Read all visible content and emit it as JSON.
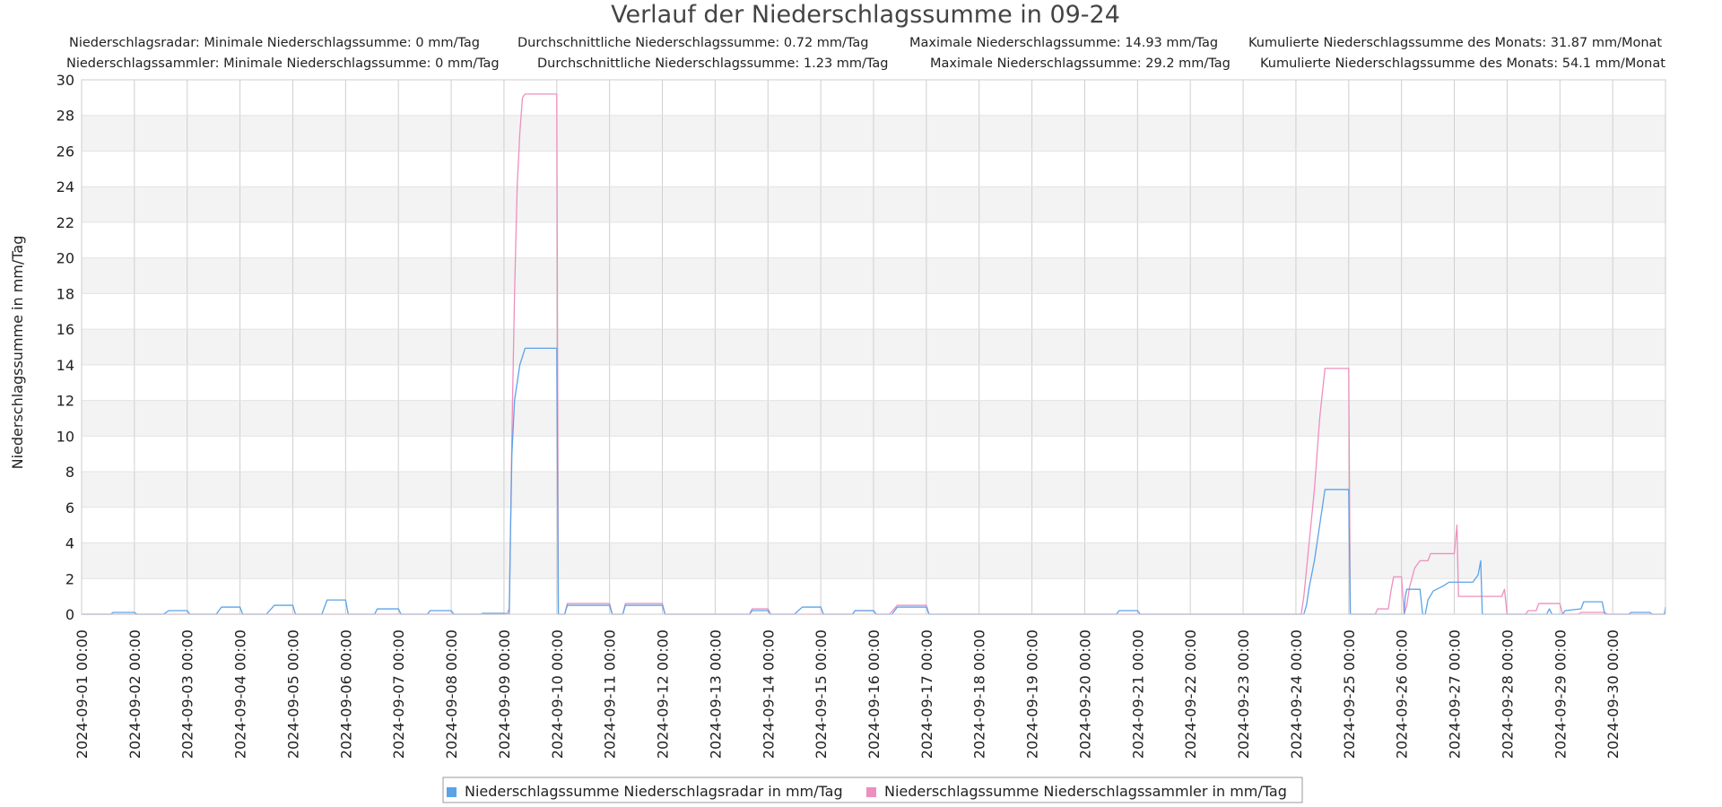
{
  "chart_data": {
    "type": "line",
    "title": "Verlauf der Niederschlagssumme in 09-24",
    "stats": [
      {
        "series": "Niederschlagsradar",
        "min": "Niederschlagsradar: Minimale Niederschlagssumme: 0 mm/Tag",
        "avg": "Durchschnittliche Niederschlagssumme: 0.72 mm/Tag",
        "max": "Maximale Niederschlagssumme: 14.93 mm/Tag",
        "cum": "Kumulierte Niederschlagssumme des Monats: 31.87 mm/Monat"
      },
      {
        "series": "Niederschlagssammler",
        "min": "Niederschlagssammler: Minimale Niederschlagssumme: 0 mm/Tag",
        "avg": "Durchschnittliche Niederschlagssumme: 1.23 mm/Tag",
        "max": "Maximale Niederschlagssumme: 29.2 mm/Tag",
        "cum": "Kumulierte Niederschlagssumme des Monats: 54.1 mm/Monat"
      }
    ],
    "ylabel": "Niederschlagssumme in mm/Tag",
    "ylim": [
      0,
      30
    ],
    "yticks": [
      0,
      2,
      4,
      6,
      8,
      10,
      12,
      14,
      16,
      18,
      20,
      22,
      24,
      26,
      28,
      30
    ],
    "xlim_days": [
      0,
      30
    ],
    "xticks": [
      "2024-09-01 00:00",
      "2024-09-02 00:00",
      "2024-09-03 00:00",
      "2024-09-04 00:00",
      "2024-09-05 00:00",
      "2024-09-06 00:00",
      "2024-09-07 00:00",
      "2024-09-08 00:00",
      "2024-09-09 00:00",
      "2024-09-10 00:00",
      "2024-09-11 00:00",
      "2024-09-12 00:00",
      "2024-09-13 00:00",
      "2024-09-14 00:00",
      "2024-09-15 00:00",
      "2024-09-16 00:00",
      "2024-09-17 00:00",
      "2024-09-18 00:00",
      "2024-09-19 00:00",
      "2024-09-20 00:00",
      "2024-09-21 00:00",
      "2024-09-22 00:00",
      "2024-09-23 00:00",
      "2024-09-24 00:00",
      "2024-09-25 00:00",
      "2024-09-26 00:00",
      "2024-09-27 00:00",
      "2024-09-28 00:00",
      "2024-09-29 00:00",
      "2024-09-30 00:00"
    ],
    "grid": true,
    "legend_position": "bottom",
    "series": [
      {
        "name": "Niederschlagssumme Niederschlagsradar in mm/Tag",
        "color": "#5ba3e8",
        "points": [
          [
            0,
            0
          ],
          [
            0.55,
            0
          ],
          [
            0.6,
            0.1
          ],
          [
            1.0,
            0.1
          ],
          [
            1.05,
            0
          ],
          [
            1.55,
            0
          ],
          [
            1.65,
            0.2
          ],
          [
            2.0,
            0.2
          ],
          [
            2.05,
            0
          ],
          [
            2.55,
            0
          ],
          [
            2.65,
            0.4
          ],
          [
            3.0,
            0.4
          ],
          [
            3.05,
            0
          ],
          [
            3.5,
            0
          ],
          [
            3.65,
            0.5
          ],
          [
            4.0,
            0.5
          ],
          [
            4.05,
            0
          ],
          [
            4.55,
            0
          ],
          [
            4.65,
            0.8
          ],
          [
            5.0,
            0.8
          ],
          [
            5.05,
            0
          ],
          [
            5.55,
            0
          ],
          [
            5.6,
            0.3
          ],
          [
            6.0,
            0.3
          ],
          [
            6.05,
            0
          ],
          [
            6.55,
            0
          ],
          [
            6.6,
            0.2
          ],
          [
            7.0,
            0.2
          ],
          [
            7.05,
            0
          ],
          [
            7.55,
            0
          ],
          [
            7.6,
            0.05
          ],
          [
            8.0,
            0.05
          ],
          [
            8.1,
            0
          ],
          [
            8.12,
            4
          ],
          [
            8.15,
            9
          ],
          [
            8.2,
            12
          ],
          [
            8.3,
            14
          ],
          [
            8.4,
            14.93
          ],
          [
            9.0,
            14.93
          ],
          [
            9.03,
            0
          ],
          [
            9.15,
            0
          ],
          [
            9.2,
            0.5
          ],
          [
            10.0,
            0.5
          ],
          [
            10.05,
            0
          ],
          [
            10.25,
            0
          ],
          [
            10.3,
            0.5
          ],
          [
            11.0,
            0.5
          ],
          [
            11.05,
            0
          ],
          [
            12.65,
            0
          ],
          [
            12.7,
            0.2
          ],
          [
            13.0,
            0.2
          ],
          [
            13.05,
            0
          ],
          [
            13.5,
            0
          ],
          [
            13.65,
            0.4
          ],
          [
            14.0,
            0.4
          ],
          [
            14.05,
            0
          ],
          [
            14.6,
            0
          ],
          [
            14.65,
            0.2
          ],
          [
            15.0,
            0.2
          ],
          [
            15.05,
            0
          ],
          [
            15.35,
            0
          ],
          [
            15.45,
            0.4
          ],
          [
            16.0,
            0.4
          ],
          [
            16.05,
            0
          ],
          [
            19.6,
            0
          ],
          [
            19.65,
            0.2
          ],
          [
            20.0,
            0.2
          ],
          [
            20.05,
            0
          ],
          [
            23.15,
            0
          ],
          [
            23.2,
            0.5
          ],
          [
            23.25,
            1.5
          ],
          [
            23.35,
            3
          ],
          [
            23.45,
            5
          ],
          [
            23.55,
            7
          ],
          [
            23.8,
            7
          ],
          [
            24.0,
            7
          ],
          [
            24.03,
            0
          ],
          [
            25.05,
            0
          ],
          [
            25.07,
            1
          ],
          [
            25.1,
            1.4
          ],
          [
            25.35,
            1.4
          ],
          [
            25.4,
            0
          ],
          [
            25.45,
            0
          ],
          [
            25.5,
            0.8
          ],
          [
            25.6,
            1.3
          ],
          [
            25.8,
            1.6
          ],
          [
            25.9,
            1.8
          ],
          [
            26.35,
            1.8
          ],
          [
            26.45,
            2.2
          ],
          [
            26.5,
            3.0
          ],
          [
            26.53,
            0
          ],
          [
            27.75,
            0
          ],
          [
            27.8,
            0.3
          ],
          [
            27.85,
            0
          ],
          [
            28.05,
            0
          ],
          [
            28.1,
            0.2
          ],
          [
            28.4,
            0.3
          ],
          [
            28.45,
            0.7
          ],
          [
            28.8,
            0.7
          ],
          [
            28.85,
            0
          ],
          [
            29.3,
            0
          ],
          [
            29.35,
            0.1
          ],
          [
            29.7,
            0.1
          ],
          [
            29.75,
            0
          ],
          [
            29.98,
            0
          ],
          [
            30,
            0.4
          ]
        ]
      },
      {
        "name": "Niederschlagssumme Niederschlagssammler in mm/Tag",
        "color": "#ee8fbe",
        "points": [
          [
            0,
            0
          ],
          [
            8.05,
            0
          ],
          [
            8.1,
            0.3
          ],
          [
            8.12,
            4
          ],
          [
            8.15,
            10
          ],
          [
            8.2,
            18
          ],
          [
            8.25,
            24
          ],
          [
            8.3,
            27
          ],
          [
            8.35,
            29
          ],
          [
            8.4,
            29.2
          ],
          [
            9.0,
            29.2
          ],
          [
            9.03,
            0
          ],
          [
            9.15,
            0
          ],
          [
            9.2,
            0.6
          ],
          [
            10.0,
            0.6
          ],
          [
            10.05,
            0
          ],
          [
            10.25,
            0
          ],
          [
            10.3,
            0.6
          ],
          [
            11.0,
            0.6
          ],
          [
            11.05,
            0
          ],
          [
            12.65,
            0
          ],
          [
            12.7,
            0.3
          ],
          [
            13.0,
            0.3
          ],
          [
            13.05,
            0
          ],
          [
            14.6,
            0
          ],
          [
            14.65,
            0.2
          ],
          [
            15.0,
            0.2
          ],
          [
            15.05,
            0
          ],
          [
            15.3,
            0
          ],
          [
            15.45,
            0.5
          ],
          [
            16.0,
            0.5
          ],
          [
            16.05,
            0
          ],
          [
            23.1,
            0
          ],
          [
            23.15,
            1
          ],
          [
            23.25,
            4
          ],
          [
            23.35,
            7
          ],
          [
            23.45,
            11
          ],
          [
            23.55,
            13.8
          ],
          [
            24.0,
            13.8
          ],
          [
            24.03,
            0
          ],
          [
            24.5,
            0
          ],
          [
            24.55,
            0.3
          ],
          [
            24.75,
            0.3
          ],
          [
            24.8,
            1.3
          ],
          [
            24.85,
            2.1
          ],
          [
            25.0,
            2.1
          ],
          [
            25.05,
            0
          ],
          [
            25.1,
            0.5
          ],
          [
            25.15,
            1.5
          ],
          [
            25.25,
            2.6
          ],
          [
            25.35,
            3.0
          ],
          [
            25.5,
            3.0
          ],
          [
            25.55,
            3.4
          ],
          [
            26.0,
            3.4
          ],
          [
            26.05,
            5.0
          ],
          [
            26.08,
            1.0
          ],
          [
            26.9,
            1.0
          ],
          [
            26.95,
            1.4
          ],
          [
            27.0,
            0
          ],
          [
            27.35,
            0
          ],
          [
            27.4,
            0.2
          ],
          [
            27.55,
            0.2
          ],
          [
            27.6,
            0.6
          ],
          [
            28.0,
            0.6
          ],
          [
            28.05,
            0
          ],
          [
            28.35,
            0
          ],
          [
            28.4,
            0.1
          ],
          [
            28.85,
            0.1
          ],
          [
            28.9,
            0
          ],
          [
            29.98,
            0
          ],
          [
            30,
            0.4
          ]
        ]
      }
    ]
  }
}
